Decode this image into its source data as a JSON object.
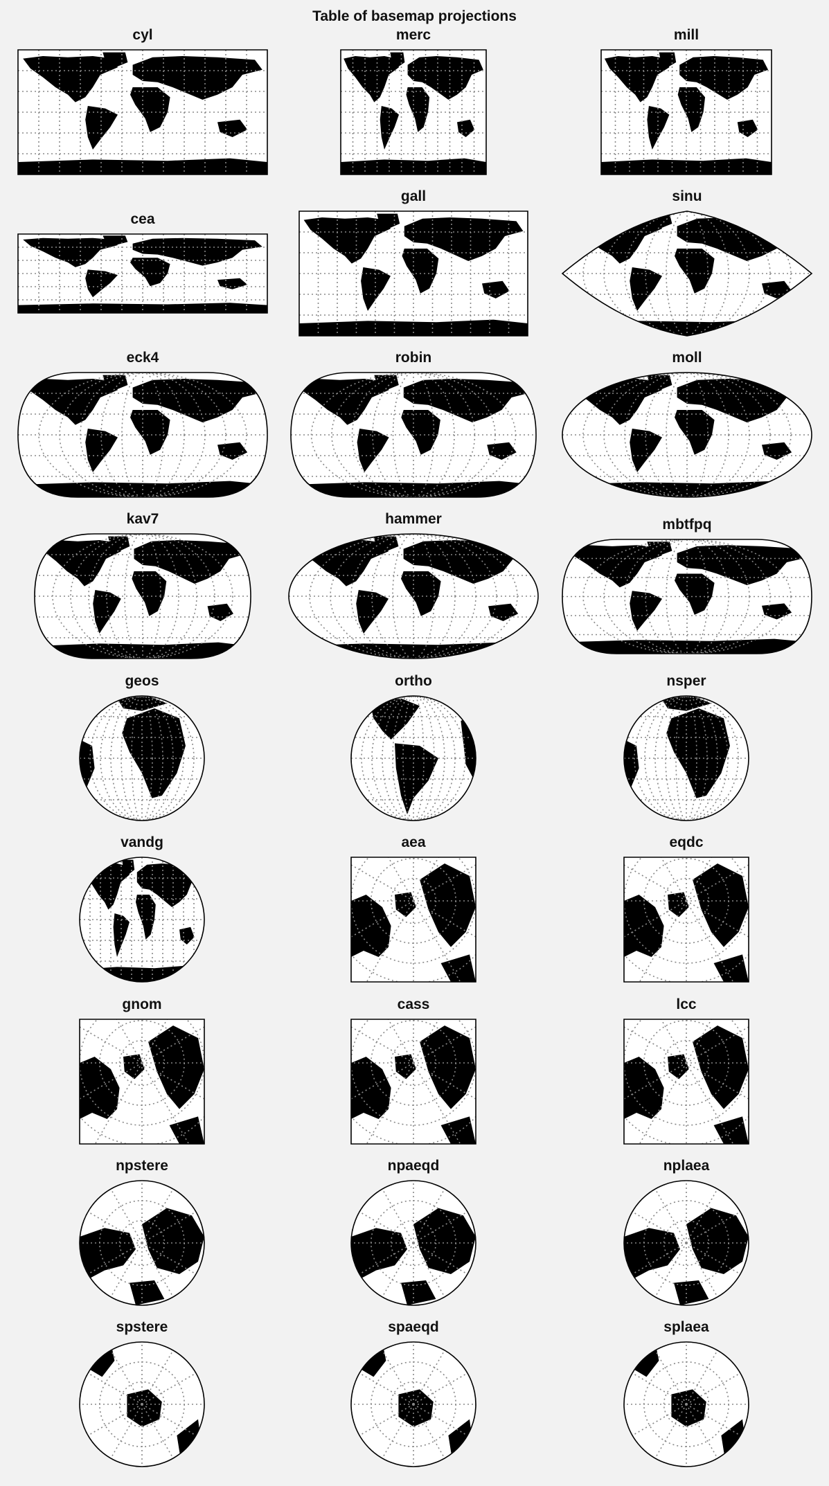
{
  "figure": {
    "title": "Table of basemap projections"
  },
  "maps": [
    {
      "name": "cyl",
      "shape": "rect",
      "view": "world",
      "graticule": "grid"
    },
    {
      "name": "merc",
      "shape": "rect",
      "view": "world",
      "graticule": "grid"
    },
    {
      "name": "mill",
      "shape": "rect",
      "view": "world",
      "graticule": "grid"
    },
    {
      "name": "cea",
      "shape": "rect",
      "view": "world",
      "graticule": "grid"
    },
    {
      "name": "gall",
      "shape": "rect",
      "view": "world",
      "graticule": "grid"
    },
    {
      "name": "sinu",
      "shape": "sinu",
      "view": "world",
      "graticule": "curved"
    },
    {
      "name": "eck4",
      "shape": "stadium",
      "view": "world",
      "graticule": "curved"
    },
    {
      "name": "robin",
      "shape": "stadium",
      "view": "world",
      "graticule": "curved"
    },
    {
      "name": "moll",
      "shape": "ellipse",
      "view": "world",
      "graticule": "curved"
    },
    {
      "name": "kav7",
      "shape": "stadium",
      "view": "world",
      "graticule": "curved"
    },
    {
      "name": "hammer",
      "shape": "ellipse",
      "view": "world",
      "graticule": "curved"
    },
    {
      "name": "mbtfpq",
      "shape": "stadium",
      "view": "world",
      "graticule": "curved"
    },
    {
      "name": "geos",
      "shape": "circle",
      "view": "africa",
      "graticule": "curved"
    },
    {
      "name": "ortho",
      "shape": "circle",
      "view": "americas",
      "graticule": "curved"
    },
    {
      "name": "nsper",
      "shape": "circle",
      "view": "africa",
      "graticule": "curved"
    },
    {
      "name": "vandg",
      "shape": "circle",
      "view": "world",
      "graticule": "grid"
    },
    {
      "name": "aea",
      "shape": "square",
      "view": "north",
      "graticule": "polar"
    },
    {
      "name": "eqdc",
      "shape": "square",
      "view": "north",
      "graticule": "polar"
    },
    {
      "name": "gnom",
      "shape": "square",
      "view": "north",
      "graticule": "polar"
    },
    {
      "name": "cass",
      "shape": "square",
      "view": "north",
      "graticule": "polar"
    },
    {
      "name": "lcc",
      "shape": "square",
      "view": "north",
      "graticule": "polar"
    },
    {
      "name": "npstere",
      "shape": "circle",
      "view": "pole-n",
      "graticule": "polar"
    },
    {
      "name": "npaeqd",
      "shape": "circle",
      "view": "pole-n",
      "graticule": "polar"
    },
    {
      "name": "nplaea",
      "shape": "circle",
      "view": "pole-n",
      "graticule": "polar"
    },
    {
      "name": "spstere",
      "shape": "circle",
      "view": "pole-s",
      "graticule": "polar"
    },
    {
      "name": "spaeqd",
      "shape": "circle",
      "view": "pole-s",
      "graticule": "polar"
    },
    {
      "name": "splaea",
      "shape": "circle",
      "view": "pole-s",
      "graticule": "polar"
    }
  ],
  "colors": {
    "land": "#000000",
    "ocean": "#ffffff",
    "grid": "#888888",
    "border": "#000000",
    "background": "#f2f2f2"
  }
}
